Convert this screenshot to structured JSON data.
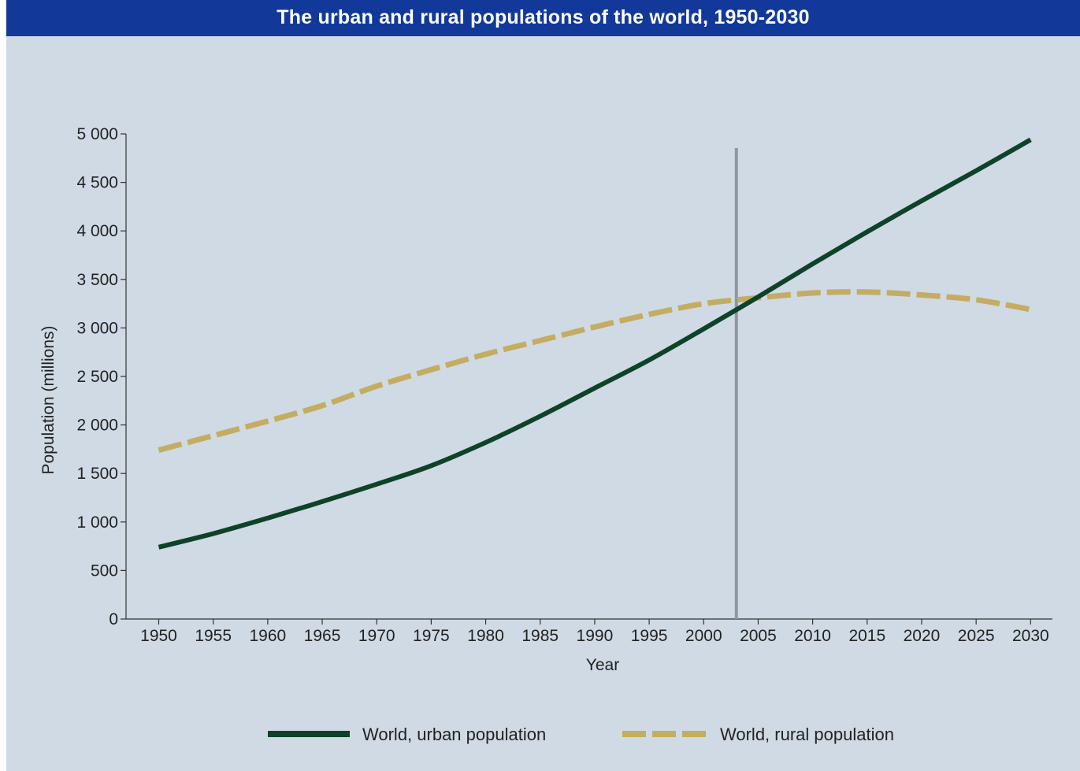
{
  "title": "The urban and rural populations of the world, 1950-2030",
  "colors": {
    "title_bg": "#12399a",
    "panel_bg": "#cfdae4",
    "urban": "#0e4229",
    "rural": "#c4ad62",
    "marker_line": "#8e979c"
  },
  "chart_data": {
    "type": "line",
    "xlabel": "Year",
    "ylabel": "Population (millions)",
    "xlim": [
      1947,
      2032
    ],
    "ylim": [
      0,
      5000
    ],
    "x_ticks": [
      1950,
      1955,
      1960,
      1965,
      1970,
      1975,
      1980,
      1985,
      1990,
      1995,
      2000,
      2005,
      2010,
      2015,
      2020,
      2025,
      2030
    ],
    "x_tick_labels": [
      "1950",
      "1955",
      "1960",
      "1965",
      "1970",
      "1975",
      "1980",
      "1985",
      "1990",
      "1995",
      "2000",
      "2005",
      "2010",
      "2015",
      "2020",
      "2025",
      "2030"
    ],
    "y_ticks": [
      0,
      500,
      1000,
      1500,
      2000,
      2500,
      3000,
      3500,
      4000,
      4500,
      5000
    ],
    "y_tick_labels": [
      "0",
      "500",
      "1 000",
      "1 500",
      "2 000",
      "2 500",
      "3 000",
      "3 500",
      "4 000",
      "4 500",
      "5 000"
    ],
    "vertical_marker_x": 2003,
    "grid": false,
    "legend_position": "bottom",
    "series": [
      {
        "name": "World, urban population",
        "style": "solid",
        "x": [
          1950,
          1955,
          1960,
          1965,
          1970,
          1975,
          1980,
          1985,
          1990,
          1995,
          2000,
          2005,
          2010,
          2015,
          2020,
          2025,
          2030
        ],
        "values": [
          740,
          880,
          1040,
          1210,
          1390,
          1580,
          1820,
          2090,
          2380,
          2670,
          2990,
          3320,
          3660,
          3990,
          4310,
          4620,
          4940
        ]
      },
      {
        "name": "World, rural population",
        "style": "dashed",
        "x": [
          1950,
          1955,
          1960,
          1965,
          1970,
          1975,
          1980,
          1985,
          1990,
          1995,
          2000,
          2005,
          2010,
          2015,
          2020,
          2025,
          2030
        ],
        "values": [
          1740,
          1890,
          2040,
          2200,
          2400,
          2570,
          2730,
          2870,
          3010,
          3140,
          3250,
          3310,
          3360,
          3370,
          3340,
          3290,
          3190
        ]
      }
    ]
  }
}
